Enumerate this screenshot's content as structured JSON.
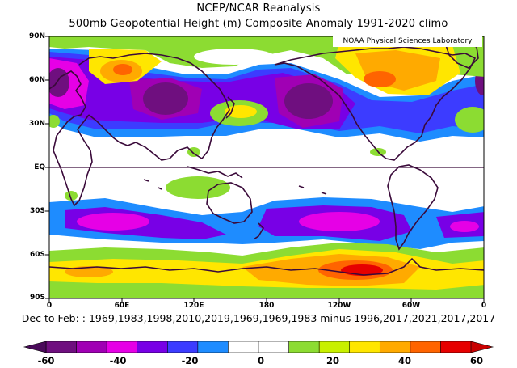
{
  "header": {
    "title": "NCEP/NCAR Reanalysis",
    "subtitle": "500mb Geopotential Height (m) Composite Anomaly 1991-2020 climo"
  },
  "credit": "NOAA Physical Sciences Laboratory",
  "axes": {
    "lat_labels": [
      "90N",
      "60N",
      "30N",
      "EQ",
      "30S",
      "60S",
      "90S"
    ],
    "lon_labels": [
      "0",
      "60E",
      "120E",
      "180",
      "120W",
      "60W",
      "0"
    ]
  },
  "footer": "Dec to Feb: : 1969,1983,1998,2010,2019,1969,1969,1983 minus 1996,2017,2021,2017,2017",
  "colorbar": {
    "labels": [
      "-60",
      "-40",
      "-20",
      "0",
      "20",
      "40",
      "60"
    ],
    "colors": [
      "#6f0f7f",
      "#a000b4",
      "#e600e6",
      "#7800e6",
      "#3c3cff",
      "#1e8cff",
      "#ffffff",
      "#ffffff",
      "#8cdc32",
      "#c8f000",
      "#ffe600",
      "#ffaa00",
      "#ff6400",
      "#e60000"
    ]
  },
  "map_data": {
    "anomaly_fields": [
      {
        "name": "North Pacific trough",
        "sign": "negative",
        "lat": 45,
        "lon": 185
      },
      {
        "name": "Siberia trough",
        "sign": "negative",
        "lat": 50,
        "lon": 95
      },
      {
        "name": "North Atlantic / Europe trough",
        "sign": "negative",
        "lat": 55,
        "lon": 5
      },
      {
        "name": "Canada ridge",
        "sign": "positive",
        "lat": 60,
        "lon": 255
      },
      {
        "name": "Siberia ridge",
        "sign": "positive",
        "lat": 70,
        "lon": 55
      },
      {
        "name": "Southern Ocean trough",
        "sign": "negative",
        "lat": -40,
        "lon": 240
      },
      {
        "name": "Antarctic ridge",
        "sign": "positive",
        "lat": -70,
        "lon": 230
      }
    ]
  }
}
